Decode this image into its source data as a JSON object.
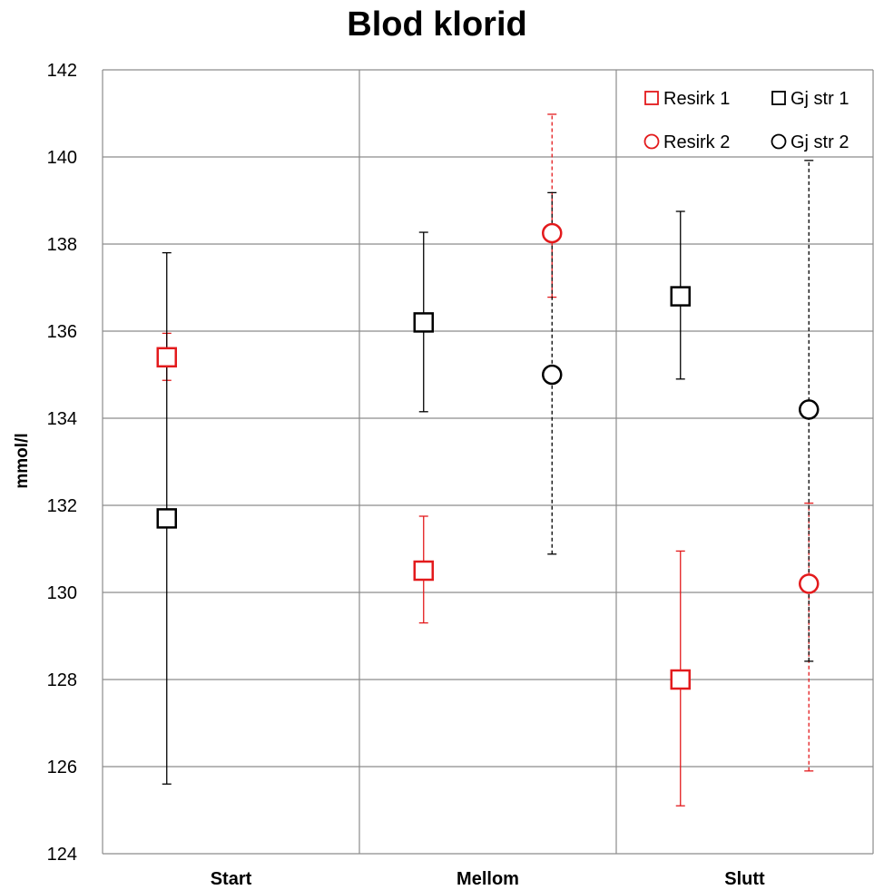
{
  "chart_data": {
    "type": "scatter",
    "title": "Blod klorid",
    "ylabel": "mmol/l",
    "xlabel": "",
    "categories": [
      "Start",
      "Mellom",
      "Slutt"
    ],
    "ylim": [
      124,
      142
    ],
    "yticks": [
      124,
      126,
      128,
      130,
      132,
      134,
      136,
      138,
      140,
      142
    ],
    "grid": true,
    "legend_position": "top-right",
    "series": [
      {
        "name": "Resirk 1",
        "marker": "square",
        "color": "#e31a1c",
        "dashed": false,
        "slot": 0,
        "points": [
          {
            "category": "Start",
            "value": 135.4,
            "err_low": 134.87,
            "err_high": 135.95
          },
          {
            "category": "Mellom",
            "value": 130.5,
            "err_low": 129.3,
            "err_high": 131.75
          },
          {
            "category": "Slutt",
            "value": 128.0,
            "err_low": 125.1,
            "err_high": 130.95
          }
        ]
      },
      {
        "name": "Gj str 1",
        "marker": "square",
        "color": "#000000",
        "dashed": false,
        "slot": 0,
        "points": [
          {
            "category": "Start",
            "value": 131.7,
            "err_low": 125.6,
            "err_high": 137.8
          },
          {
            "category": "Mellom",
            "value": 136.2,
            "err_low": 134.15,
            "err_high": 138.27
          },
          {
            "category": "Slutt",
            "value": 136.8,
            "err_low": 134.9,
            "err_high": 138.75
          }
        ]
      },
      {
        "name": "Resirk 2",
        "marker": "circle",
        "color": "#e31a1c",
        "dashed": true,
        "slot": 1,
        "points": [
          {
            "category": "Mellom",
            "value": 138.25,
            "err_low": 136.78,
            "err_high": 140.98
          },
          {
            "category": "Slutt",
            "value": 130.2,
            "err_low": 125.9,
            "err_high": 132.05
          }
        ]
      },
      {
        "name": "Gj str 2",
        "marker": "circle",
        "color": "#000000",
        "dashed": true,
        "slot": 1,
        "points": [
          {
            "category": "Mellom",
            "value": 135.0,
            "err_low": 130.88,
            "err_high": 139.18
          },
          {
            "category": "Slutt",
            "value": 134.2,
            "err_low": 128.42,
            "err_high": 139.92
          }
        ]
      }
    ]
  }
}
